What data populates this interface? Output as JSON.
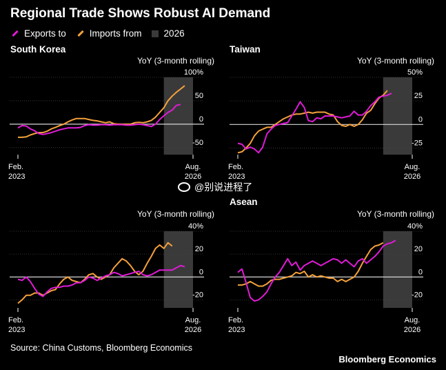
{
  "title": "Regional Trade Shows Robust AI Demand",
  "legend": [
    {
      "label": "Exports to",
      "color": "#e01bd7",
      "kind": "line"
    },
    {
      "label": "Imports from",
      "color": "#f5a23c",
      "kind": "line"
    },
    {
      "label": "2026",
      "color": "#3a3a3a",
      "kind": "box"
    }
  ],
  "unit_label": "YoY (3-month rolling)",
  "source": "Source: China Customs, Bloomberg Economics",
  "brand": "Bloomberg Economics",
  "watermark": "@别说进程了",
  "colors": {
    "exports": "#e01bd7",
    "imports": "#f5a23c",
    "shade": "#3a3a3a"
  },
  "chart_data": [
    {
      "type": "line",
      "title": "South Korea",
      "ylabel": "YoY (3-month rolling)",
      "ylim": [
        -65,
        100
      ],
      "yticks": [
        -50,
        0,
        50,
        100
      ],
      "ytick_labels": [
        "-50",
        "0",
        "50",
        "100%"
      ],
      "xlim": [
        "2023-02",
        "2026-08"
      ],
      "xtick_labels": [
        [
          "Feb.",
          "2023"
        ],
        [
          "Aug.",
          "2026"
        ]
      ],
      "shade": [
        "2026-01",
        "2026-08"
      ],
      "series": [
        {
          "name": "Exports to",
          "x_start": "2023-02",
          "values": [
            -8,
            -3,
            -4,
            -10,
            -14,
            -20,
            -22,
            -20,
            -18,
            -15,
            -12,
            -10,
            -8,
            -8,
            -8,
            -7,
            -3,
            -1,
            -2,
            -2,
            -1,
            -1,
            -2,
            -1,
            -1,
            -1,
            -2,
            -2,
            -1,
            0,
            -1,
            -3,
            -5,
            0,
            10,
            18,
            25,
            30,
            40,
            42
          ]
        },
        {
          "name": "Imports from",
          "x_start": "2023-02",
          "values": [
            -28,
            -28,
            -27,
            -23,
            -20,
            -18,
            -18,
            -15,
            -10,
            -7,
            -3,
            0,
            5,
            9,
            12,
            12,
            12,
            10,
            8,
            7,
            5,
            3,
            5,
            1,
            0,
            0,
            0,
            0,
            3,
            4,
            3,
            5,
            8,
            15,
            25,
            35,
            50,
            60,
            68,
            75,
            82
          ]
        }
      ]
    },
    {
      "type": "line",
      "title": "Taiwan",
      "ylabel": "YoY (3-month rolling)",
      "ylim": [
        -32,
        50
      ],
      "yticks": [
        -25,
        0,
        25,
        50
      ],
      "ytick_labels": [
        "-25",
        "0",
        "25",
        "50%"
      ],
      "xlim": [
        "2023-02",
        "2026-08"
      ],
      "xtick_labels": [
        [
          "Feb.",
          "2023"
        ],
        [
          "Aug.",
          "2026"
        ]
      ],
      "shade": [
        "2026-01",
        "2026-08"
      ],
      "series": [
        {
          "name": "Exports to",
          "x_start": "2023-02",
          "values": [
            -20,
            -21,
            -26,
            -24,
            -26,
            -30,
            -24,
            -10,
            -5,
            -1,
            0,
            1,
            2,
            9,
            16,
            24,
            18,
            4,
            3,
            7,
            6,
            9,
            9,
            9,
            8,
            7,
            8,
            9,
            14,
            10,
            10,
            14,
            20,
            24,
            29,
            30,
            31,
            33
          ]
        },
        {
          "name": "Imports from",
          "x_start": "2023-02",
          "values": [
            -30,
            -29,
            -25,
            -20,
            -12,
            -7,
            -5,
            -3,
            -3,
            0,
            3,
            6,
            8,
            10,
            11,
            11,
            12,
            13,
            12,
            13,
            13,
            13,
            11,
            10,
            3,
            -1,
            -2,
            0,
            -2,
            0,
            5,
            12,
            15,
            22,
            28,
            31,
            36
          ]
        }
      ]
    },
    {
      "type": "line",
      "title": "",
      "ylabel": "YoY (3-month rolling)",
      "ylim": [
        -27,
        40
      ],
      "yticks": [
        -20,
        0,
        20,
        40
      ],
      "ytick_labels": [
        "-20",
        "0",
        "20",
        "40%"
      ],
      "xlim": [
        "2023-02",
        "2026-08"
      ],
      "xtick_labels": [
        [
          "Feb.",
          "2023"
        ],
        [
          "Aug.",
          "2026"
        ]
      ],
      "shade": [
        "2026-01",
        "2026-08"
      ],
      "series": [
        {
          "name": "Exports to",
          "x_start": "2023-02",
          "values": [
            -2,
            -3,
            0,
            -4,
            -10,
            -15,
            -17,
            -13,
            -10,
            -9,
            -9,
            -8,
            -8,
            -7,
            -5,
            -5,
            -3,
            0,
            -1,
            -3,
            -1,
            1,
            2,
            4,
            3,
            1,
            2,
            3,
            4,
            5,
            2,
            1,
            2,
            4,
            6,
            6,
            6,
            6,
            8,
            10,
            9
          ]
        },
        {
          "name": "Imports from",
          "x_start": "2023-02",
          "values": [
            -23,
            -20,
            -16,
            -16,
            -14,
            -14,
            -16,
            -14,
            -12,
            -11,
            -6,
            -2,
            0,
            -3,
            -4,
            -5,
            -2,
            2,
            3,
            0,
            -2,
            0,
            2,
            8,
            12,
            16,
            14,
            10,
            5,
            2,
            5,
            12,
            18,
            25,
            28,
            25,
            30,
            27
          ]
        }
      ]
    },
    {
      "type": "line",
      "title": "Asean",
      "ylabel": "YoY (3-month rolling)",
      "ylim": [
        -27,
        40
      ],
      "yticks": [
        -20,
        0,
        20,
        40
      ],
      "ytick_labels": [
        "-20",
        "0",
        "20",
        "40%"
      ],
      "xlim": [
        "2023-02",
        "2026-08"
      ],
      "xtick_labels": [
        [
          "Feb.",
          "2023"
        ],
        [
          "Aug.",
          "2026"
        ]
      ],
      "shade": [
        "2026-01",
        "2026-08"
      ],
      "series": [
        {
          "name": "Exports to",
          "x_start": "2023-02",
          "values": [
            4,
            7,
            -5,
            -18,
            -21,
            -20,
            -17,
            -13,
            -6,
            0,
            4,
            10,
            16,
            10,
            13,
            6,
            10,
            12,
            14,
            12,
            10,
            12,
            14,
            16,
            15,
            12,
            15,
            12,
            9,
            14,
            16,
            12,
            15,
            18,
            22,
            27,
            29,
            30,
            32
          ]
        },
        {
          "name": "Imports from",
          "x_start": "2023-02",
          "values": [
            -7,
            -7,
            -6,
            -4,
            -6,
            -8,
            -8,
            -6,
            -3,
            -2,
            -2,
            -1,
            0,
            1,
            4,
            3,
            5,
            0,
            2,
            0,
            1,
            0,
            -1,
            -1,
            -4,
            -2,
            -4,
            -2,
            0,
            5,
            12,
            18,
            24,
            27,
            28,
            30
          ]
        }
      ]
    }
  ]
}
